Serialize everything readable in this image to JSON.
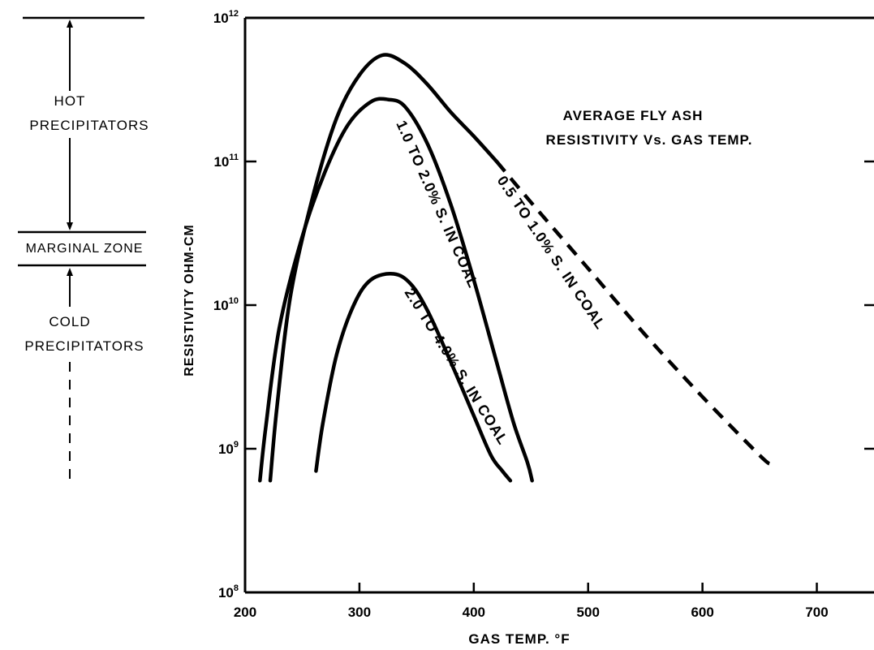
{
  "chart_data": {
    "type": "line",
    "title_lines": [
      "AVERAGE  FLY  ASH",
      "RESISTIVITY  Vs.  GAS  TEMP."
    ],
    "xlabel": "GAS  TEMP.  °F",
    "ylabel": "RESISTIVITY  OHM-CM",
    "xlim": [
      200,
      750
    ],
    "ylim": [
      100000000,
      1000000000000
    ],
    "yscale": "log",
    "x_ticks": [
      200,
      300,
      400,
      500,
      600,
      700
    ],
    "y_ticks": [
      {
        "base": "10",
        "exp": "8",
        "value": 100000000
      },
      {
        "base": "10",
        "exp": "9",
        "value": 1000000000
      },
      {
        "base": "10",
        "exp": "10",
        "value": 10000000000
      },
      {
        "base": "10",
        "exp": "11",
        "value": 100000000000
      },
      {
        "base": "10",
        "exp": "12",
        "value": 1000000000000
      }
    ],
    "grid": false,
    "series": [
      {
        "name": "0.5  TO  1.0%  S.  IN  COAL",
        "style": "solid-then-dashed",
        "dash_from_x": 420,
        "x": [
          222,
          228,
          240,
          260,
          280,
          300,
          320,
          340,
          360,
          380,
          400,
          420,
          450,
          500,
          550,
          600,
          650,
          660
        ],
        "y": [
          600000000,
          2000000000,
          12000000000,
          60000000000,
          200000000000,
          400000000000,
          550000000000,
          480000000000,
          340000000000,
          220000000000,
          150000000000,
          100000000000,
          52000000000,
          18000000000,
          6200000000,
          2300000000,
          900000000,
          780000000
        ]
      },
      {
        "name": "1.0  TO  2.0%  S.  IN  COAL",
        "style": "solid",
        "x": [
          213,
          218,
          230,
          250,
          270,
          290,
          310,
          325,
          340,
          360,
          380,
          400,
          420,
          435,
          447,
          451
        ],
        "y": [
          600000000,
          1400000000,
          7000000000,
          30000000000,
          85000000000,
          180000000000,
          260000000000,
          270000000000,
          240000000000,
          130000000000,
          50000000000,
          15000000000,
          4000000000,
          1500000000,
          800000000,
          600000000
        ]
      },
      {
        "name": "2.0  TO  4.0%  S.  IN  COAL",
        "style": "solid",
        "x": [
          262,
          268,
          280,
          295,
          310,
          330,
          345,
          360,
          380,
          400,
          415,
          425,
          432
        ],
        "y": [
          700000000,
          1500000000,
          4500000000,
          10000000000,
          15000000000,
          16500000000,
          14000000000,
          9000000000,
          4000000000,
          1700000000,
          900000000,
          700000000,
          600000000
        ]
      }
    ]
  },
  "zones": {
    "hot_label_1": "HOT",
    "hot_label_2": "PRECIPITATORS",
    "marginal_label": "MARGINAL  ZONE",
    "cold_label_1": "COLD",
    "cold_label_2": "PRECIPITATORS"
  }
}
